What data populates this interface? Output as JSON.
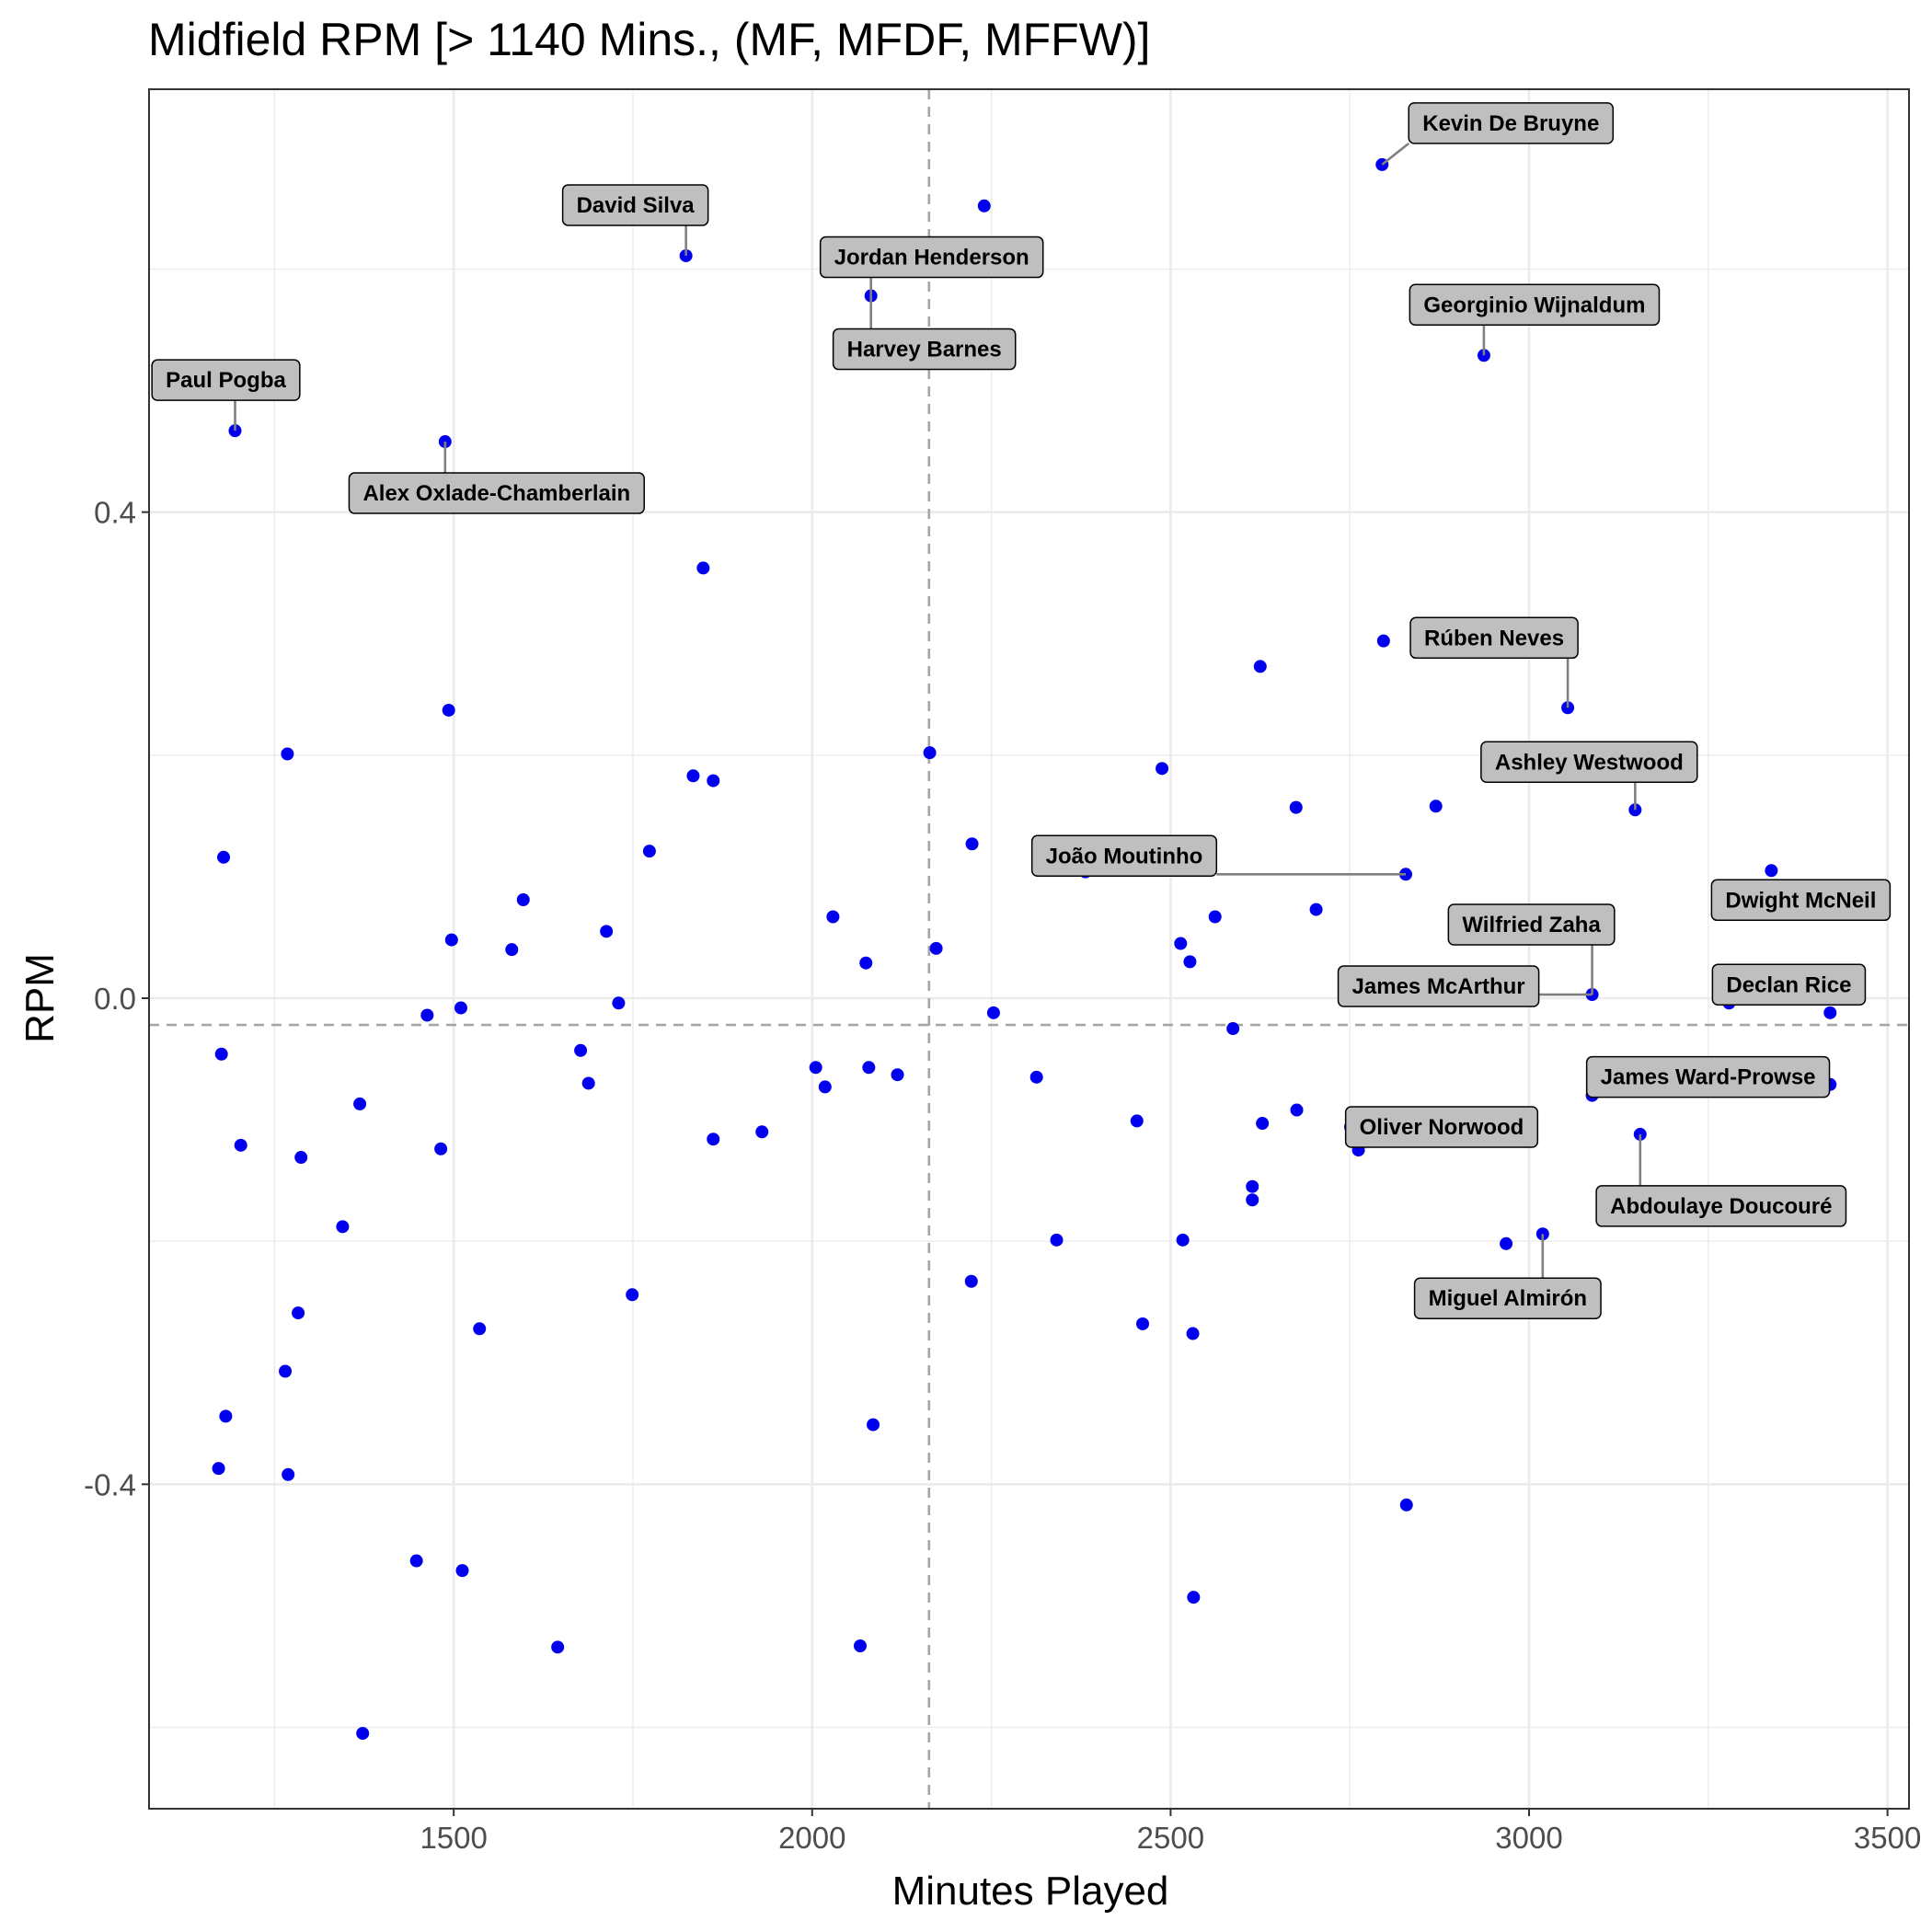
{
  "chart_data": {
    "type": "scatter",
    "title": "Midfield RPM [> 1140 Mins., (MF, MFDF, MFFW)]",
    "xlabel": "Minutes Played",
    "ylabel": "RPM",
    "xlim": [
      1075,
      3530
    ],
    "ylim": [
      -0.667,
      0.748
    ],
    "x_ticks": [
      1500,
      2000,
      2500,
      3000,
      3500
    ],
    "y_ticks": [
      -0.4,
      0.0,
      0.4
    ],
    "x_tick_labels": [
      "1500",
      "2000",
      "2500",
      "3000",
      "3500"
    ],
    "y_tick_labels": [
      "-0.4",
      "0.0",
      "0.4"
    ],
    "reference_lines": {
      "x": 2163,
      "y": -0.022
    },
    "grid": true,
    "colors": {
      "points": "#0000ee",
      "label_fill": "#bfbfbf",
      "grid": "#ebebeb",
      "ref_line": "#a6a6a6"
    },
    "points": [
      {
        "x": 2795,
        "y": 0.686,
        "label": "Kevin De Bruyne"
      },
      {
        "x": 1824,
        "y": 0.611,
        "label": "David Silva"
      },
      {
        "x": 2240,
        "y": 0.652
      },
      {
        "x": 2082,
        "y": 0.578,
        "label": "Jordan Henderson"
      },
      {
        "x": 2937,
        "y": 0.529,
        "label": "Georginio Wijnaldum"
      },
      {
        "x": 1195,
        "y": 0.467,
        "label": "Paul Pogba"
      },
      {
        "x": 1488,
        "y": 0.458,
        "label": "Alex Oxlade-Chamberlain"
      },
      {
        "x": 1848,
        "y": 0.354
      },
      {
        "x": 2797,
        "y": 0.294
      },
      {
        "x": 2625,
        "y": 0.273
      },
      {
        "x": 3054,
        "y": 0.239,
        "label": "Rúben Neves"
      },
      {
        "x": 1493,
        "y": 0.237
      },
      {
        "x": 1268,
        "y": 0.201
      },
      {
        "x": 2164,
        "y": 0.202
      },
      {
        "x": 2488,
        "y": 0.189
      },
      {
        "x": 1834,
        "y": 0.183
      },
      {
        "x": 1862,
        "y": 0.179
      },
      {
        "x": 2675,
        "y": 0.157
      },
      {
        "x": 2870,
        "y": 0.158
      },
      {
        "x": 3148,
        "y": 0.155,
        "label": "Ashley Westwood"
      },
      {
        "x": 1179,
        "y": 0.116
      },
      {
        "x": 1773,
        "y": 0.121
      },
      {
        "x": 2223,
        "y": 0.127
      },
      {
        "x": 2381,
        "y": 0.104
      },
      {
        "x": 2828,
        "y": 0.102,
        "label": "João Moutinho"
      },
      {
        "x": 3338,
        "y": 0.105,
        "label": "Dwight McNeil"
      },
      {
        "x": 1597,
        "y": 0.081
      },
      {
        "x": 2029,
        "y": 0.067
      },
      {
        "x": 2703,
        "y": 0.073
      },
      {
        "x": 2562,
        "y": 0.067
      },
      {
        "x": 1713,
        "y": 0.055
      },
      {
        "x": 1497,
        "y": 0.048
      },
      {
        "x": 1581,
        "y": 0.04
      },
      {
        "x": 2173,
        "y": 0.041
      },
      {
        "x": 2514,
        "y": 0.045
      },
      {
        "x": 2075,
        "y": 0.029
      },
      {
        "x": 2527,
        "y": 0.03
      },
      {
        "x": 3088,
        "y": 0.003,
        "label": "James McArthur"
      },
      {
        "x": 3279,
        "y": -0.004,
        "label": "Declan Rice"
      },
      {
        "x": 1730,
        "y": -0.004
      },
      {
        "x": 1510,
        "y": -0.008
      },
      {
        "x": 1463,
        "y": -0.014
      },
      {
        "x": 2253,
        "y": -0.012
      },
      {
        "x": 3420,
        "y": -0.012
      },
      {
        "x": 2587,
        "y": -0.025
      },
      {
        "x": 1677,
        "y": -0.043
      },
      {
        "x": 1176,
        "y": -0.046
      },
      {
        "x": 2005,
        "y": -0.057
      },
      {
        "x": 2079,
        "y": -0.057
      },
      {
        "x": 2313,
        "y": -0.065
      },
      {
        "x": 2119,
        "y": -0.063
      },
      {
        "x": 2018,
        "y": -0.073
      },
      {
        "x": 1688,
        "y": -0.07
      },
      {
        "x": 3420,
        "y": -0.071
      },
      {
        "x": 3088,
        "y": -0.08,
        "label": "James Ward-Prowse"
      },
      {
        "x": 1369,
        "y": -0.087
      },
      {
        "x": 2453,
        "y": -0.101
      },
      {
        "x": 2676,
        "y": -0.092
      },
      {
        "x": 2628,
        "y": -0.103
      },
      {
        "x": 2751,
        "y": -0.106,
        "label": "Oliver Norwood"
      },
      {
        "x": 1930,
        "y": -0.11
      },
      {
        "x": 1862,
        "y": -0.116
      },
      {
        "x": 3155,
        "y": -0.112,
        "label": "Abdoulaye Doucouré"
      },
      {
        "x": 1203,
        "y": -0.121
      },
      {
        "x": 1482,
        "y": -0.124
      },
      {
        "x": 2762,
        "y": -0.125
      },
      {
        "x": 1287,
        "y": -0.131
      },
      {
        "x": 2614,
        "y": -0.155
      },
      {
        "x": 2614,
        "y": -0.166
      },
      {
        "x": 1345,
        "y": -0.188
      },
      {
        "x": 2341,
        "y": -0.199
      },
      {
        "x": 2517,
        "y": -0.199
      },
      {
        "x": 3019,
        "y": -0.194,
        "label": "Miguel Almirón"
      },
      {
        "x": 2968,
        "y": -0.202
      },
      {
        "x": 2222,
        "y": -0.233
      },
      {
        "x": 1749,
        "y": -0.244
      },
      {
        "x": 1283,
        "y": -0.259
      },
      {
        "x": 1536,
        "y": -0.272
      },
      {
        "x": 2461,
        "y": -0.268
      },
      {
        "x": 2531,
        "y": -0.276
      },
      {
        "x": 1265,
        "y": -0.307
      },
      {
        "x": 1182,
        "y": -0.344
      },
      {
        "x": 2085,
        "y": -0.351
      },
      {
        "x": 1172,
        "y": -0.387
      },
      {
        "x": 1269,
        "y": -0.392
      },
      {
        "x": 2829,
        "y": -0.417
      },
      {
        "x": 1448,
        "y": -0.463
      },
      {
        "x": 1512,
        "y": -0.471
      },
      {
        "x": 2532,
        "y": -0.493
      },
      {
        "x": 1645,
        "y": -0.534
      },
      {
        "x": 2067,
        "y": -0.533
      },
      {
        "x": 1373,
        "y": -0.605
      },
      {
        "x": 2082,
        "y": 0.578,
        "label": "Harvey Barnes"
      },
      {
        "x": 3088,
        "y": 0.003,
        "label": "Wilfried Zaha"
      }
    ]
  }
}
